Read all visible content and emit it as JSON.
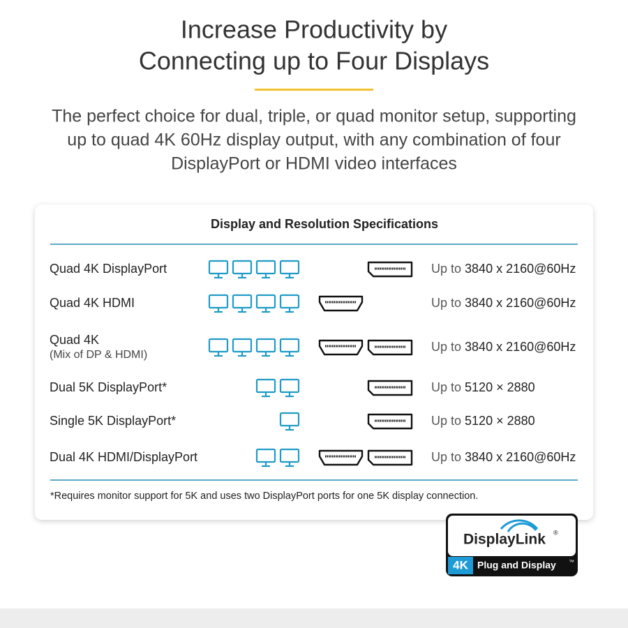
{
  "header": {
    "title_lines": [
      "Increase Productivity by",
      "Connecting up to Four Displays"
    ],
    "subtitle_lines": [
      "The perfect choice for dual, triple, or quad monitor setup, supporting",
      "up to quad 4K 60Hz display output, with any combination of four",
      "DisplayPort or HDMI video interfaces"
    ]
  },
  "table": {
    "title": "Display and Resolution Specifications",
    "rows": [
      {
        "label": "Quad 4K DisplayPort",
        "monitors": 4,
        "ports": [
          "displayport"
        ],
        "prefix": "Up to",
        "resolution": "3840 x 2160@60Hz"
      },
      {
        "label": "Quad 4K HDMI",
        "monitors": 4,
        "ports": [
          "hdmi"
        ],
        "prefix": "Up to",
        "resolution": "3840 x 2160@60Hz"
      },
      {
        "label": "Quad 4K",
        "sublabel": "(Mix of DP & HDMI)",
        "monitors": 4,
        "ports": [
          "hdmi",
          "displayport"
        ],
        "prefix": "Up to",
        "resolution": "3840 x 2160@60Hz"
      },
      {
        "label": "Dual 5K DisplayPort*",
        "monitors": 2,
        "ports": [
          "displayport"
        ],
        "prefix": "Up to",
        "resolution": "5120 × 2880"
      },
      {
        "label": "Single 5K DisplayPort*",
        "monitors": 1,
        "ports": [
          "displayport"
        ],
        "prefix": "Up to",
        "resolution": "5120 × 2880"
      },
      {
        "label": "Dual 4K HDMI/DisplayPort",
        "monitors": 2,
        "ports": [
          "hdmi",
          "displayport"
        ],
        "prefix": "Up to",
        "resolution": "3840 x 2160@60Hz"
      }
    ],
    "footnote": "*Requires monitor support for 5K and uses two DisplayPort ports for one 5K display connection."
  },
  "badge": {
    "brand": "DisplayLink",
    "registered": "®",
    "tag": "4K",
    "slogan": "Plug and Display",
    "trademark": "™"
  }
}
